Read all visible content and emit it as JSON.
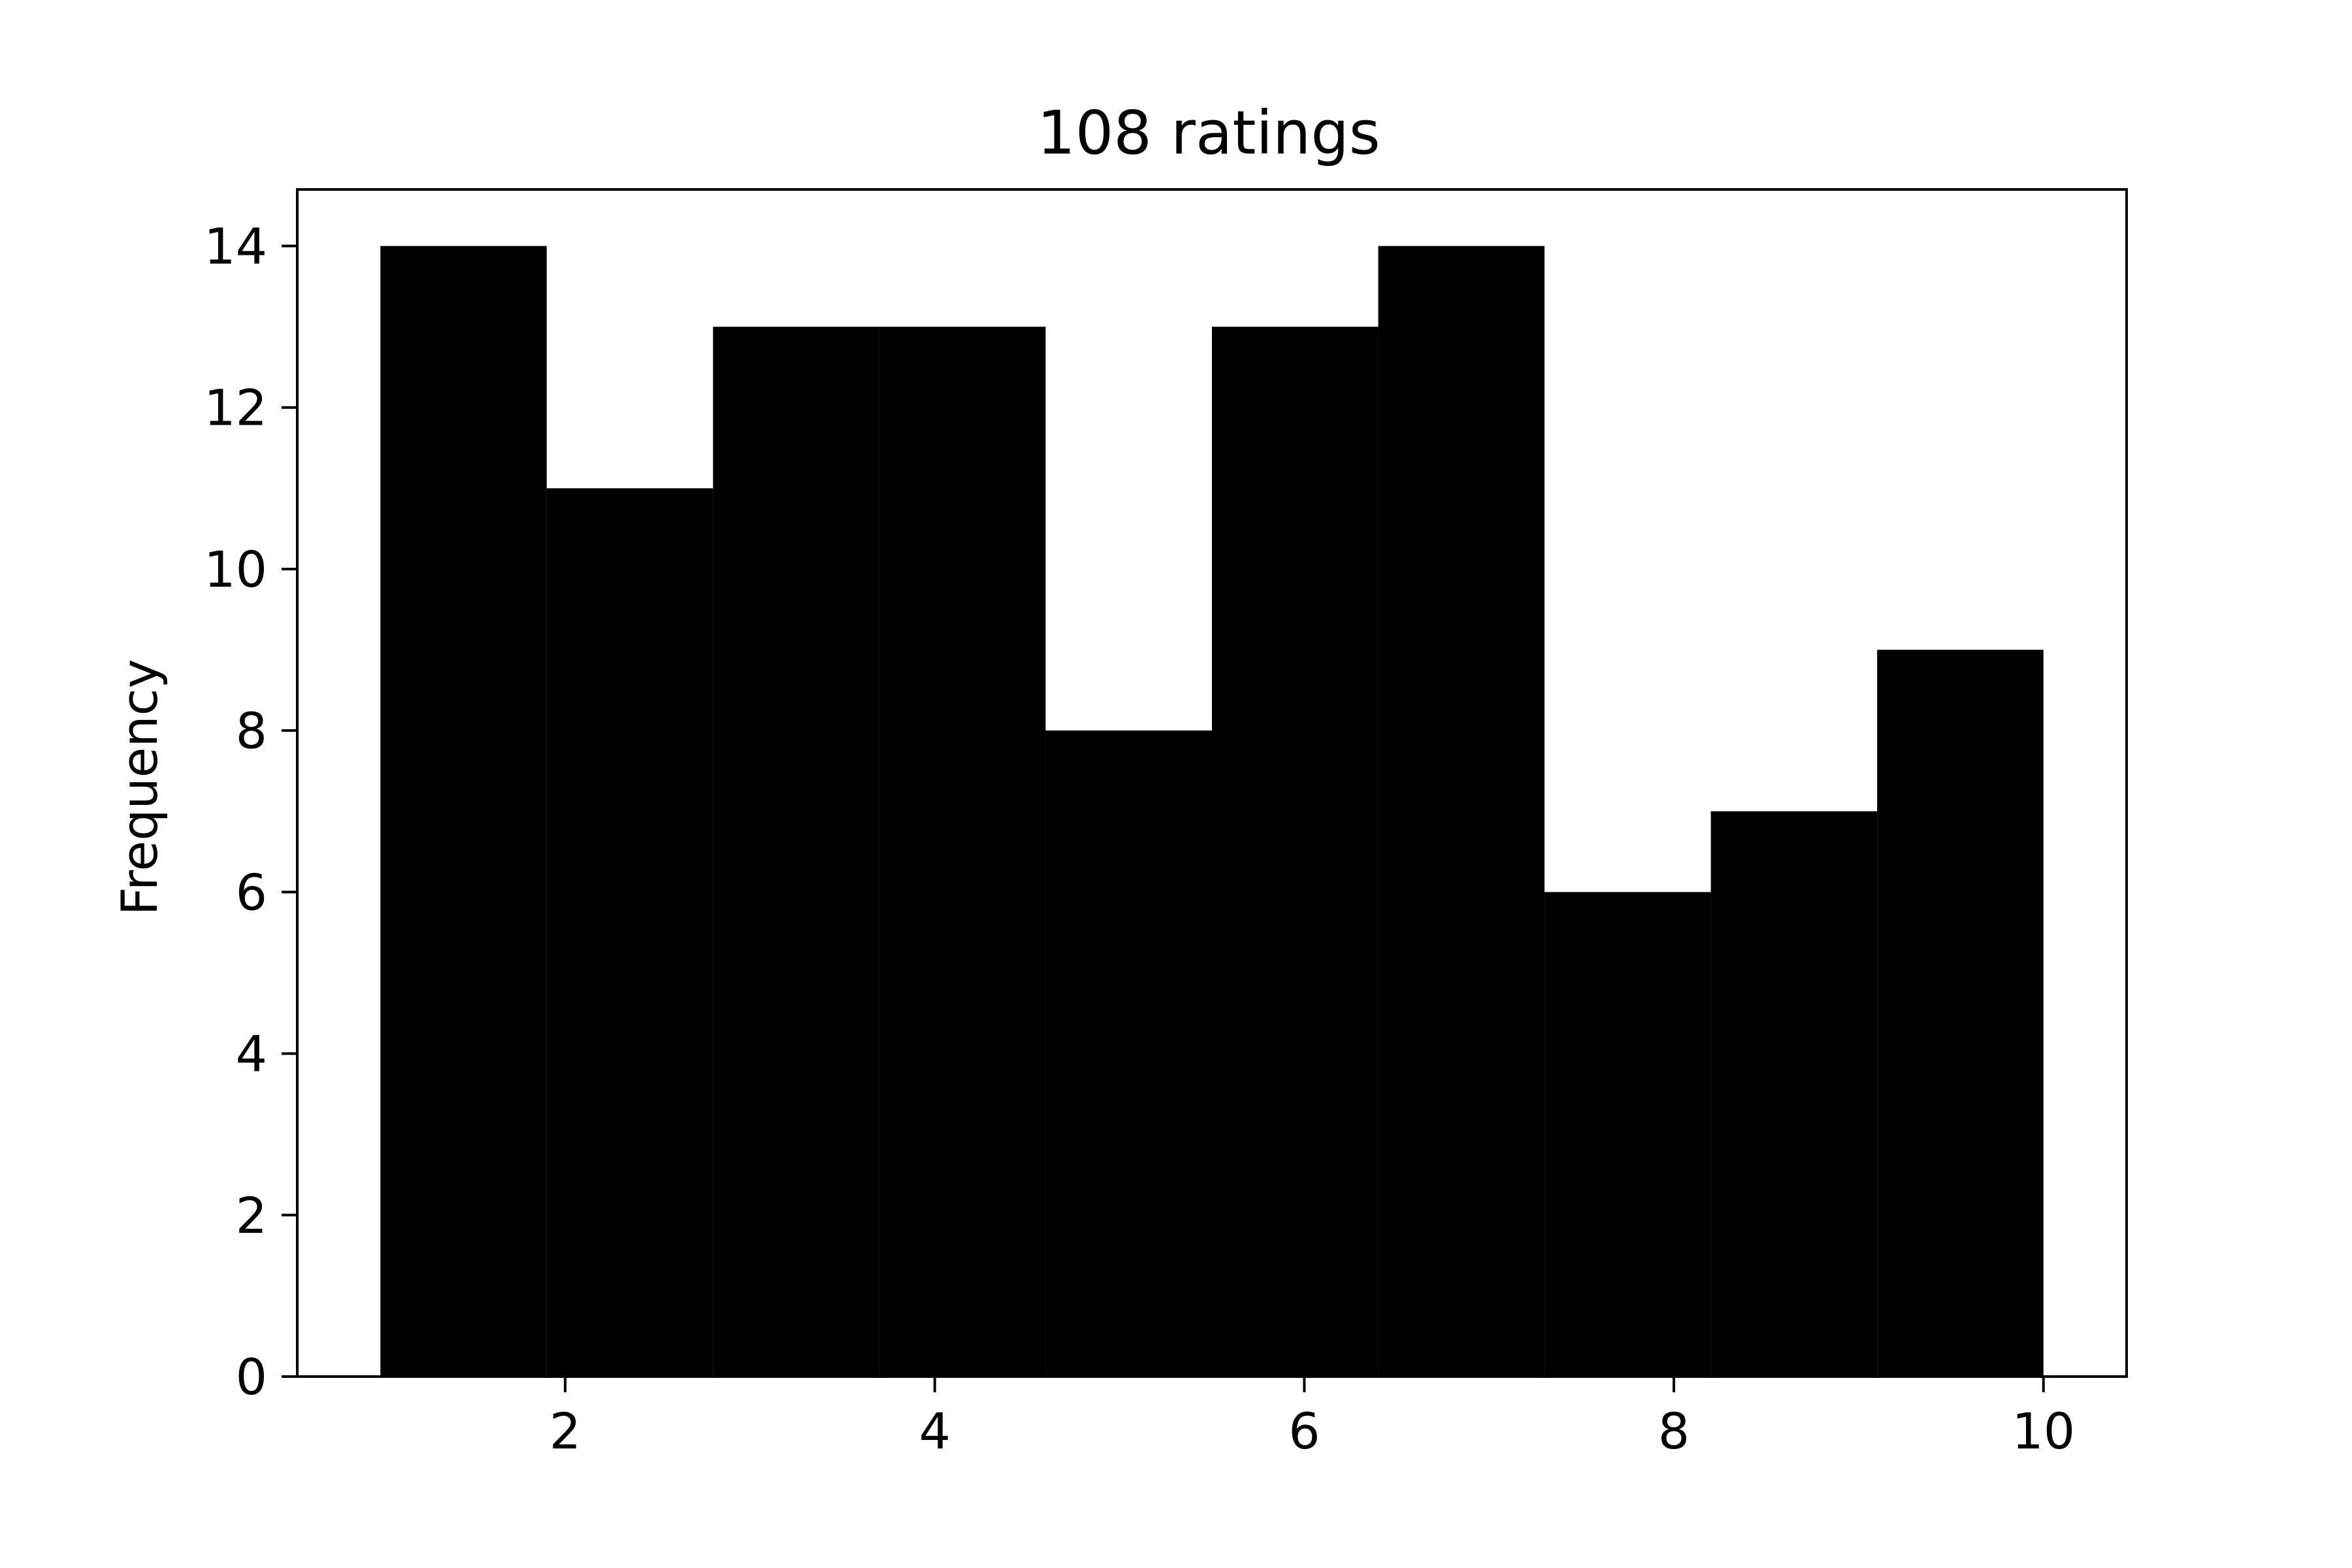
{
  "chart_data": {
    "type": "bar",
    "title": "108 ratings",
    "xlabel": "",
    "ylabel": "Frequency",
    "bin_edges": [
      1.0,
      1.9,
      2.8,
      3.7,
      4.6,
      5.5,
      6.4,
      7.3,
      8.2,
      9.1,
      10.0
    ],
    "values": [
      14,
      11,
      13,
      13,
      8,
      13,
      14,
      6,
      7,
      9
    ],
    "xlim": [
      0.55,
      10.45
    ],
    "ylim": [
      0,
      14.7
    ],
    "x_ticks": [
      2,
      4,
      6,
      8,
      10
    ],
    "y_ticks": [
      0,
      2,
      4,
      6,
      8,
      10,
      12,
      14
    ],
    "bar_color": "#000000",
    "grid": false,
    "legend": "none"
  }
}
